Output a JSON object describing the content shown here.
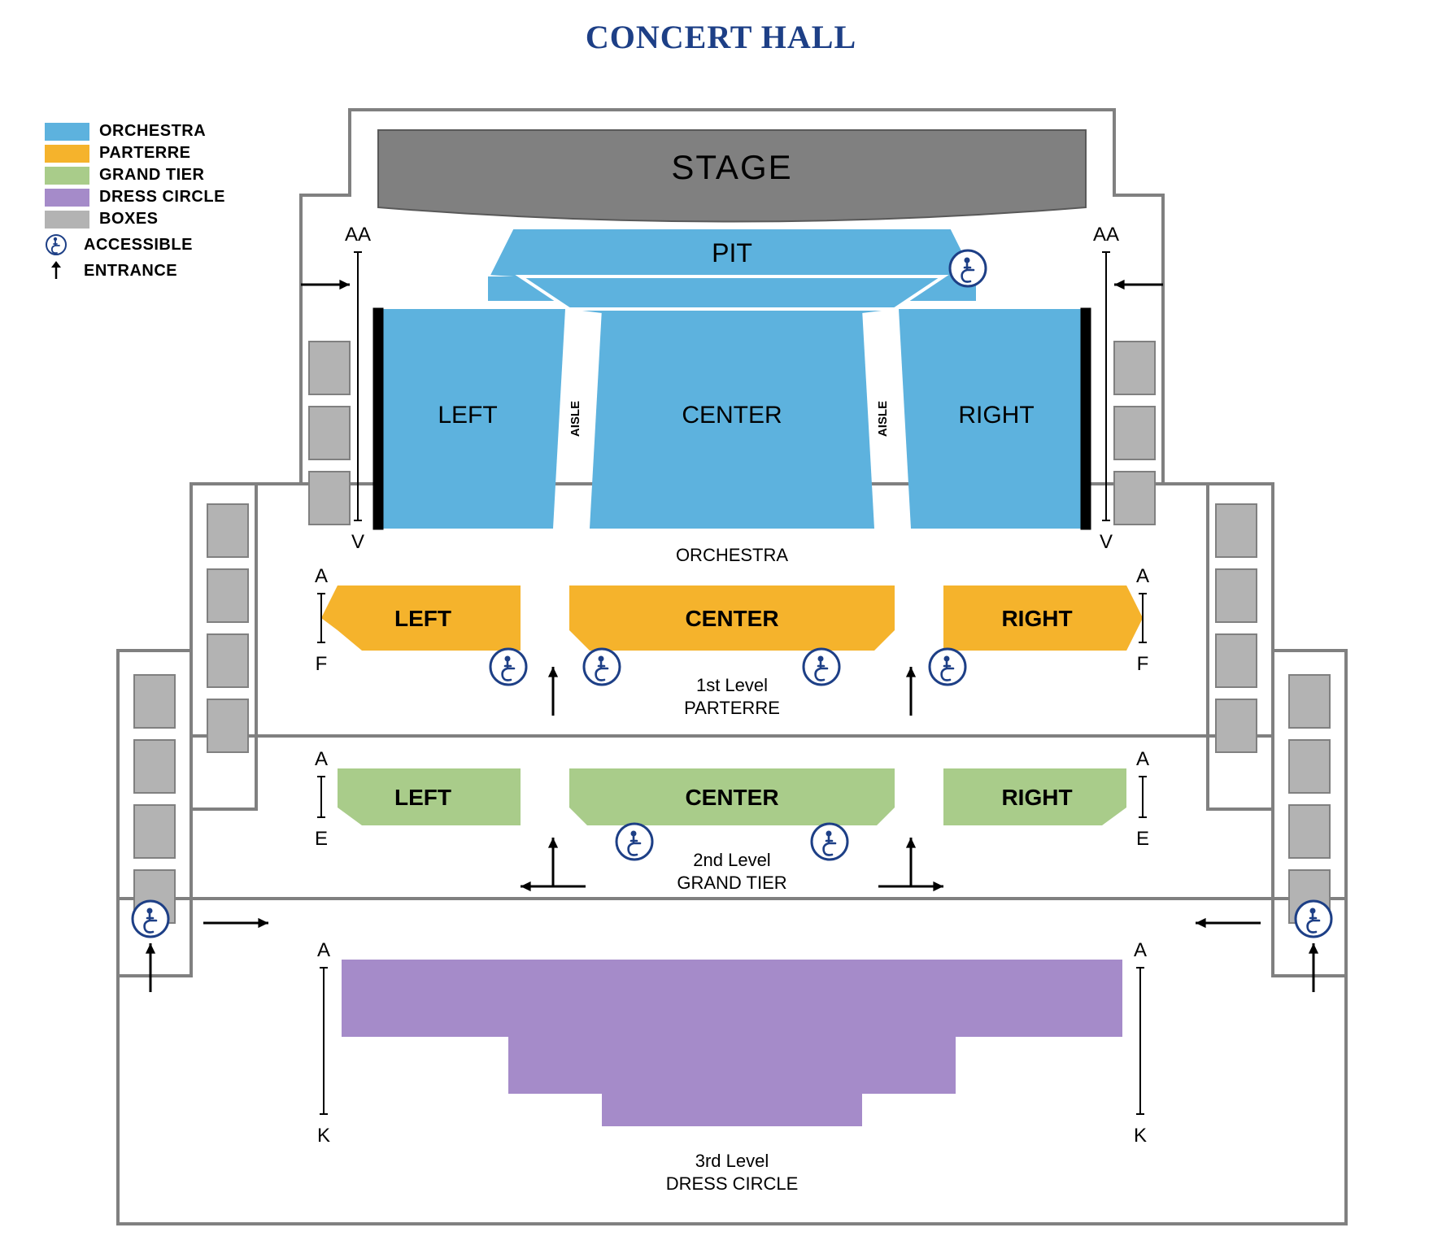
{
  "title": {
    "text": "CONCERT HALL",
    "color": "#1d3f86",
    "fontsize": 40
  },
  "palette": {
    "orchestra": "#5db2de",
    "parterre": "#f5b32c",
    "grand_tier": "#a9cc8a",
    "dress_circle": "#a58bc9",
    "boxes": "#b3b3b3",
    "stage": "#808080",
    "outline": "#808080",
    "outline_dark": "#595959",
    "accessible_stroke": "#1d3f86",
    "black": "#000000",
    "white": "#ffffff"
  },
  "legend": {
    "items": [
      {
        "key": "orchestra",
        "label": "ORCHESTRA"
      },
      {
        "key": "parterre",
        "label": "PARTERRE"
      },
      {
        "key": "grand_tier",
        "label": "GRAND TIER"
      },
      {
        "key": "dress_circle",
        "label": "DRESS CIRCLE"
      },
      {
        "key": "boxes",
        "label": "BOXES"
      }
    ],
    "accessible_label": "ACCESSIBLE",
    "entrance_label": "ENTRANCE"
  },
  "stage_label": "STAGE",
  "pit_label": "PIT",
  "orchestra": {
    "left": "LEFT",
    "center": "CENTER",
    "right": "RIGHT",
    "aisle": "AISLE",
    "row_top": "AA",
    "row_bottom": "V",
    "level_label": "ORCHESTRA"
  },
  "parterre": {
    "left": "LEFT",
    "center": "CENTER",
    "right": "RIGHT",
    "row_top": "A",
    "row_bottom": "F",
    "level_label_1": "1st Level",
    "level_label_2": "PARTERRE"
  },
  "grand_tier": {
    "left": "LEFT",
    "center": "CENTER",
    "right": "RIGHT",
    "row_top": "A",
    "row_bottom": "E",
    "level_label_1": "2nd Level",
    "level_label_2": "GRAND TIER"
  },
  "dress_circle": {
    "row_top": "A",
    "row_bottom": "K",
    "level_label_1": "3rd Level",
    "level_label_2": "DRESS CIRCLE"
  },
  "fontsizes": {
    "stage": 42,
    "section": 30,
    "section_small": 28,
    "level": 22,
    "rows": 24,
    "aisle": 15
  }
}
